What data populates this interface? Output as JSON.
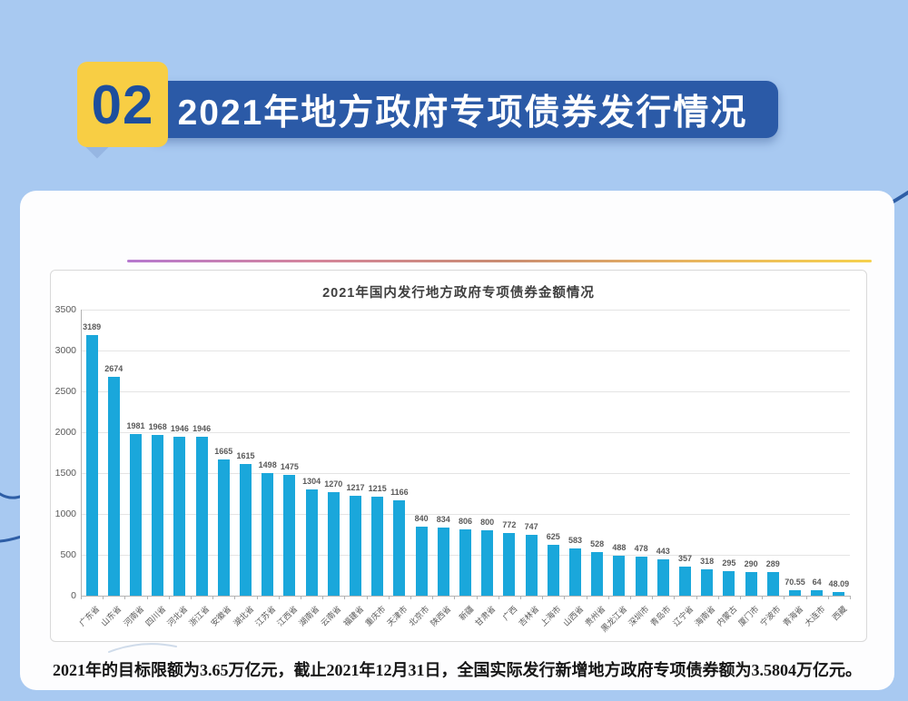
{
  "page": {
    "background_color": "#a8c9f1"
  },
  "header": {
    "badge_number": "02",
    "badge_color": "#f8ce44",
    "badge_text_color": "#1d4e9d",
    "banner_color": "#2b5aa7",
    "title": "2021年地方政府专项债券发行情况"
  },
  "card": {
    "divider_gradient": [
      "#b678cf",
      "#d4849b",
      "#c98b72",
      "#e7b35f",
      "#f6d14e"
    ],
    "footnote": "2021年的目标限额为3.65万亿元，截止2021年12月31日，全国实际发行新增地方政府专项债券额为3.5804万亿元。"
  },
  "chart_data": {
    "type": "bar",
    "title": "2021年国内发行地方政府专项债券金额情况",
    "categories": [
      "广东省",
      "山东省",
      "河南省",
      "四川省",
      "河北省",
      "浙江省",
      "安徽省",
      "湖北省",
      "江苏省",
      "江西省",
      "湖南省",
      "云南省",
      "福建省",
      "重庆市",
      "天津市",
      "北京市",
      "陕西省",
      "新疆",
      "甘肃省",
      "广西",
      "吉林省",
      "上海市",
      "山西省",
      "贵州省",
      "黑龙江省",
      "深圳市",
      "青岛市",
      "辽宁省",
      "海南省",
      "内蒙古",
      "厦门市",
      "宁波市",
      "青海省",
      "大连市",
      "西藏"
    ],
    "values": [
      3189,
      2674,
      1981,
      1968,
      1946,
      1946,
      1665,
      1615,
      1498,
      1475,
      1304,
      1270,
      1217,
      1215,
      1166,
      840,
      834,
      806,
      800,
      772,
      747,
      625,
      583,
      528,
      488,
      478,
      443,
      357,
      318,
      295,
      290,
      289,
      70.55,
      64,
      48.09
    ],
    "value_labels": [
      "3189",
      "2674",
      "1981",
      "1968",
      "1946",
      "1946",
      "1665",
      "1615",
      "1498",
      "1475",
      "1304",
      "1270",
      "1217",
      "1215",
      "1166",
      "840",
      "834",
      "806",
      "800",
      "772",
      "747",
      "625",
      "583",
      "528",
      "488",
      "478",
      "443",
      "357",
      "318",
      "295",
      "290",
      "289",
      "70.55",
      "64",
      "48.09"
    ],
    "ylabel": "",
    "xlabel": "",
    "ylim": [
      0,
      3500
    ],
    "yticks": [
      0,
      500,
      1000,
      1500,
      2000,
      2500,
      3000,
      3500
    ],
    "grid": true,
    "legend": false,
    "bar_color": "#1aa7db"
  }
}
